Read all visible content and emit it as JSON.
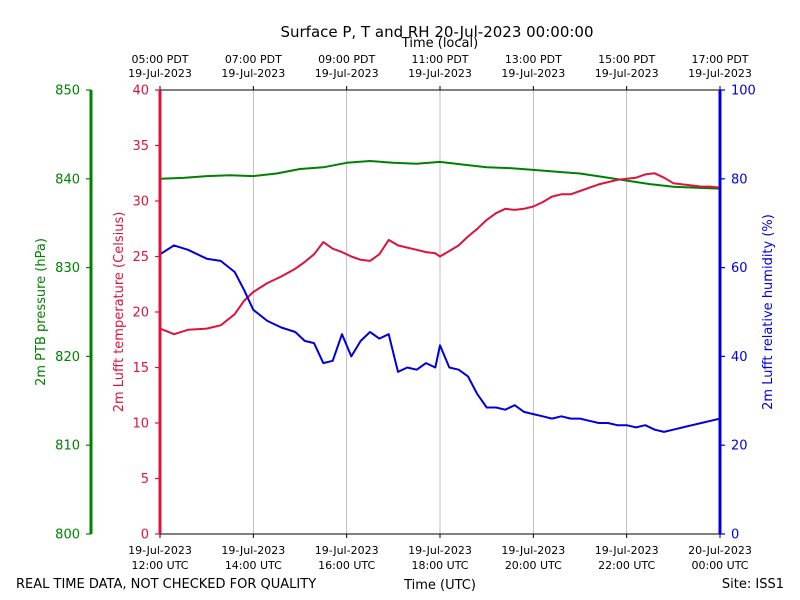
{
  "chart_data": {
    "type": "line",
    "title": "Surface P, T and RH 20-Jul-2023 00:00:00",
    "top_axis_title": "Time (local)",
    "bottom_axis_title": "Time (UTC)",
    "footer_left": "REAL TIME DATA, NOT CHECKED FOR QUALITY",
    "footer_right": "Site: ISS1",
    "xlim_hours_utc": [
      12,
      24
    ],
    "top_ticks": [
      {
        "hour": 12,
        "time": "05:00 PDT",
        "date": "19-Jul-2023"
      },
      {
        "hour": 14,
        "time": "07:00 PDT",
        "date": "19-Jul-2023"
      },
      {
        "hour": 16,
        "time": "09:00 PDT",
        "date": "19-Jul-2023"
      },
      {
        "hour": 18,
        "time": "11:00 PDT",
        "date": "19-Jul-2023"
      },
      {
        "hour": 20,
        "time": "13:00 PDT",
        "date": "19-Jul-2023"
      },
      {
        "hour": 22,
        "time": "15:00 PDT",
        "date": "19-Jul-2023"
      },
      {
        "hour": 24,
        "time": "17:00 PDT",
        "date": "19-Jul-2023"
      }
    ],
    "bottom_ticks": [
      {
        "hour": 12,
        "date": "19-Jul-2023",
        "time": "12:00 UTC"
      },
      {
        "hour": 14,
        "date": "19-Jul-2023",
        "time": "14:00 UTC"
      },
      {
        "hour": 16,
        "date": "19-Jul-2023",
        "time": "16:00 UTC"
      },
      {
        "hour": 18,
        "date": "19-Jul-2023",
        "time": "18:00 UTC"
      },
      {
        "hour": 20,
        "date": "19-Jul-2023",
        "time": "20:00 UTC"
      },
      {
        "hour": 22,
        "date": "19-Jul-2023",
        "time": "22:00 UTC"
      },
      {
        "hour": 24,
        "date": "20-Jul-2023",
        "time": "00:00 UTC"
      }
    ],
    "grid": "vertical",
    "axes": {
      "pressure": {
        "label": "2m PTB pressure (hPa)",
        "color": "#008000",
        "ylim": [
          800,
          850
        ],
        "ticks": [
          "800",
          "810",
          "820",
          "830",
          "840",
          "850"
        ]
      },
      "temperature": {
        "label": "2m Lufft temperature (Celsius)",
        "color": "#dc143c",
        "ylim": [
          0,
          40
        ],
        "ticks": [
          "0",
          "5",
          "10",
          "15",
          "20",
          "25",
          "30",
          "35",
          "40"
        ]
      },
      "humidity": {
        "label": "2m Lufft relative humidity (%)",
        "color": "#0000dd",
        "ylim": [
          0,
          100
        ],
        "ticks": [
          "0",
          "20",
          "40",
          "60",
          "80",
          "100"
        ]
      }
    },
    "series": [
      {
        "name": "2m PTB pressure (hPa)",
        "axis": "pressure",
        "color": "#008000",
        "x": [
          12.0,
          12.5,
          13.0,
          13.5,
          14.0,
          14.5,
          15.0,
          15.5,
          16.0,
          16.5,
          17.0,
          17.5,
          18.0,
          18.5,
          19.0,
          19.5,
          20.0,
          20.5,
          21.0,
          21.5,
          22.0,
          22.5,
          23.0,
          23.5,
          24.0
        ],
        "y": [
          840.0,
          840.1,
          840.3,
          840.4,
          840.3,
          840.6,
          841.1,
          841.3,
          841.8,
          842.0,
          841.8,
          841.7,
          841.9,
          841.6,
          841.3,
          841.2,
          841.0,
          840.8,
          840.6,
          840.2,
          839.8,
          839.4,
          839.1,
          839.0,
          838.9
        ]
      },
      {
        "name": "2m Lufft temperature (Celsius)",
        "axis": "temperature",
        "color": "#dc143c",
        "x": [
          12.0,
          12.3,
          12.6,
          13.0,
          13.3,
          13.6,
          13.8,
          14.0,
          14.3,
          14.6,
          14.9,
          15.1,
          15.3,
          15.5,
          15.7,
          15.9,
          16.1,
          16.3,
          16.5,
          16.7,
          16.9,
          17.1,
          17.3,
          17.5,
          17.7,
          17.9,
          18.0,
          18.2,
          18.4,
          18.6,
          18.8,
          19.0,
          19.2,
          19.4,
          19.6,
          19.8,
          20.0,
          20.2,
          20.4,
          20.6,
          20.8,
          21.0,
          21.2,
          21.4,
          21.6,
          21.8,
          22.0,
          22.2,
          22.4,
          22.6,
          22.8,
          23.0,
          23.2,
          23.4,
          23.6,
          23.8,
          24.0
        ],
        "y": [
          18.5,
          18.0,
          18.4,
          18.5,
          18.8,
          19.8,
          21.0,
          21.8,
          22.6,
          23.2,
          23.9,
          24.5,
          25.2,
          26.3,
          25.7,
          25.4,
          25.0,
          24.7,
          24.6,
          25.2,
          26.5,
          26.0,
          25.8,
          25.6,
          25.4,
          25.3,
          25.0,
          25.5,
          26.0,
          26.8,
          27.5,
          28.3,
          28.9,
          29.3,
          29.2,
          29.3,
          29.5,
          29.9,
          30.4,
          30.6,
          30.6,
          30.9,
          31.2,
          31.5,
          31.7,
          31.9,
          32.0,
          32.1,
          32.4,
          32.5,
          32.1,
          31.6,
          31.5,
          31.4,
          31.3,
          31.3,
          31.2
        ]
      },
      {
        "name": "2m Lufft relative humidity (%)",
        "axis": "humidity",
        "color": "#0000dd",
        "x": [
          12.0,
          12.3,
          12.6,
          13.0,
          13.3,
          13.6,
          13.8,
          14.0,
          14.3,
          14.6,
          14.9,
          15.1,
          15.3,
          15.5,
          15.7,
          15.9,
          16.1,
          16.3,
          16.5,
          16.7,
          16.9,
          17.1,
          17.3,
          17.5,
          17.7,
          17.9,
          18.0,
          18.2,
          18.4,
          18.6,
          18.8,
          19.0,
          19.2,
          19.4,
          19.6,
          19.8,
          20.0,
          20.2,
          20.4,
          20.6,
          20.8,
          21.0,
          21.2,
          21.4,
          21.6,
          21.8,
          22.0,
          22.2,
          22.4,
          22.6,
          22.8,
          23.0,
          23.2,
          23.4,
          23.6,
          23.8,
          24.0
        ],
        "y": [
          63.0,
          65.0,
          64.0,
          62.0,
          61.5,
          59.0,
          55.0,
          50.5,
          48.0,
          46.5,
          45.5,
          43.5,
          43.0,
          38.5,
          39.0,
          45.0,
          40.0,
          43.5,
          45.5,
          44.0,
          45.0,
          36.5,
          37.5,
          37.0,
          38.5,
          37.5,
          42.5,
          37.5,
          37.0,
          35.5,
          31.5,
          28.5,
          28.5,
          28.0,
          29.0,
          27.5,
          27.0,
          26.5,
          26.0,
          26.5,
          26.0,
          26.0,
          25.5,
          25.0,
          25.0,
          24.5,
          24.5,
          24.0,
          24.5,
          23.5,
          23.0,
          23.5,
          24.0,
          24.5,
          25.0,
          25.5,
          26.0
        ]
      }
    ]
  }
}
